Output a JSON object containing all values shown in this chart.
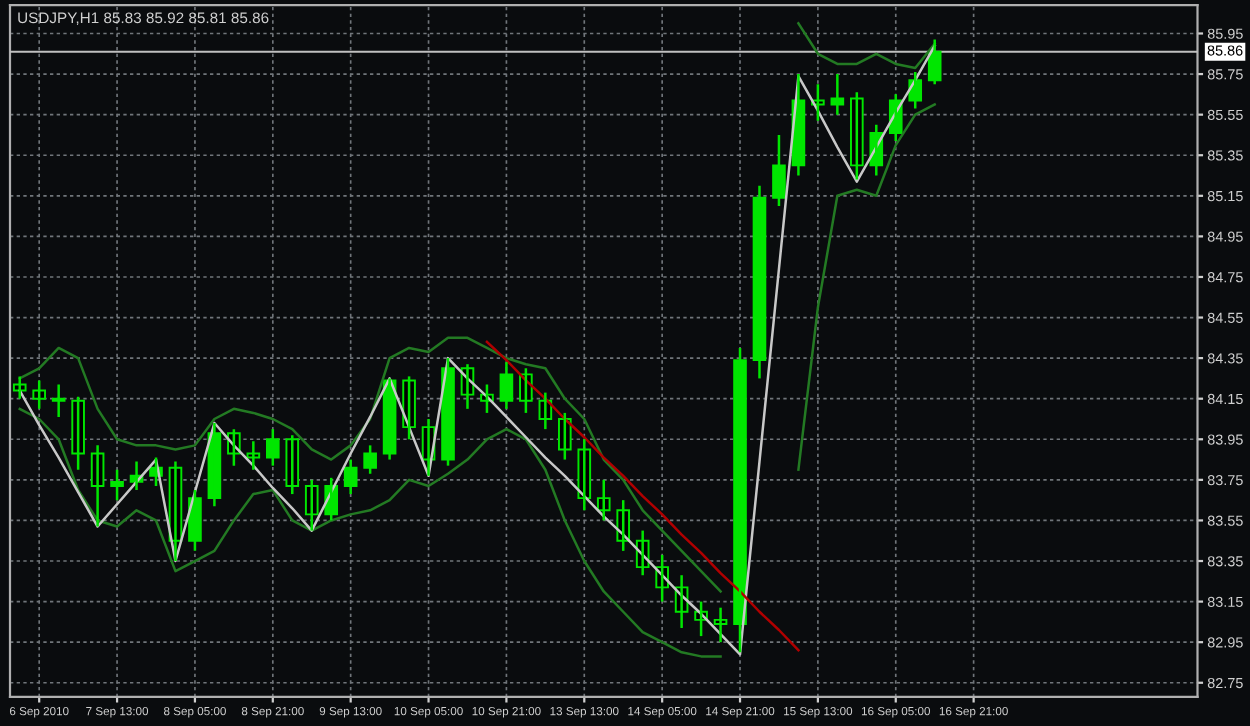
{
  "chart_data": {
    "type": "candlestick",
    "title": "USDJPY,H1 85.83 85.92 85.81 85.86",
    "categories": [
      null,
      "6 Sep 2010",
      null,
      null,
      null,
      "7 Sep 13:00",
      null,
      null,
      null,
      "8 Sep 05:00",
      null,
      null,
      null,
      "8 Sep 21:00",
      null,
      null,
      null,
      "9 Sep 13:00",
      null,
      null,
      null,
      "10 Sep 05:00",
      null,
      null,
      null,
      "10 Sep 21:00",
      null,
      null,
      null,
      "13 Sep 13:00",
      null,
      null,
      null,
      "14 Sep 05:00",
      null,
      null,
      null,
      "14 Sep 21:00",
      null,
      null,
      null,
      "15 Sep 13:00",
      null,
      null,
      null,
      "16 Sep 05:00",
      null,
      null,
      null,
      "16 Sep 21:00",
      null,
      null,
      null,
      null,
      null,
      null,
      null,
      null,
      null,
      null,
      null
    ],
    "color": "#00e600",
    "ohlc": [
      [
        84.22,
        84.26,
        84.15,
        84.19
      ],
      [
        84.19,
        84.24,
        84.1,
        84.15
      ],
      [
        84.15,
        84.22,
        84.06,
        84.14
      ],
      [
        84.14,
        84.16,
        83.8,
        83.88
      ],
      [
        83.88,
        83.92,
        83.52,
        83.72
      ],
      [
        83.72,
        83.8,
        83.65,
        83.74
      ],
      [
        83.74,
        83.84,
        83.7,
        83.77
      ],
      [
        83.77,
        83.86,
        83.72,
        83.81
      ],
      [
        83.81,
        83.84,
        83.35,
        83.45
      ],
      [
        83.45,
        83.7,
        83.4,
        83.66
      ],
      [
        83.66,
        84.03,
        83.62,
        83.98
      ],
      [
        83.98,
        84.0,
        83.82,
        83.88
      ],
      [
        83.88,
        83.94,
        83.8,
        83.86
      ],
      [
        83.86,
        84.0,
        83.82,
        83.95
      ],
      [
        83.95,
        83.97,
        83.68,
        83.72
      ],
      [
        83.72,
        83.75,
        83.5,
        83.58
      ],
      [
        83.58,
        83.76,
        83.55,
        83.72
      ],
      [
        83.72,
        83.85,
        83.68,
        83.81
      ],
      [
        83.81,
        83.92,
        83.78,
        83.88
      ],
      [
        83.88,
        84.25,
        83.85,
        84.24
      ],
      [
        84.24,
        84.26,
        83.95,
        84.01
      ],
      [
        84.01,
        84.05,
        83.77,
        83.85
      ],
      [
        83.85,
        84.35,
        83.82,
        84.3
      ],
      [
        84.3,
        84.32,
        84.1,
        84.17
      ],
      [
        84.17,
        84.22,
        84.08,
        84.14
      ],
      [
        84.14,
        84.33,
        84.1,
        84.27
      ],
      [
        84.27,
        84.3,
        84.08,
        84.14
      ],
      [
        84.14,
        84.18,
        84.0,
        84.05
      ],
      [
        84.05,
        84.08,
        83.85,
        83.9
      ],
      [
        83.9,
        83.95,
        83.6,
        83.66
      ],
      [
        83.66,
        83.75,
        83.55,
        83.6
      ],
      [
        83.6,
        83.65,
        83.4,
        83.45
      ],
      [
        83.45,
        83.5,
        83.28,
        83.32
      ],
      [
        83.32,
        83.38,
        83.15,
        83.22
      ],
      [
        83.22,
        83.28,
        83.02,
        83.1
      ],
      [
        83.1,
        83.15,
        82.98,
        83.06
      ],
      [
        83.06,
        83.12,
        82.95,
        83.04
      ],
      [
        83.04,
        84.4,
        82.9,
        84.34
      ],
      [
        84.34,
        85.2,
        84.25,
        85.14
      ],
      [
        85.14,
        85.45,
        85.1,
        85.3
      ],
      [
        85.3,
        85.75,
        85.25,
        85.62
      ],
      [
        85.62,
        85.7,
        85.52,
        85.6
      ],
      [
        85.6,
        85.75,
        85.55,
        85.63
      ],
      [
        85.63,
        85.66,
        85.23,
        85.3
      ],
      [
        85.3,
        85.5,
        85.25,
        85.46
      ],
      [
        85.46,
        85.65,
        85.42,
        85.62
      ],
      [
        85.62,
        85.76,
        85.58,
        85.72
      ],
      [
        85.72,
        85.92,
        85.7,
        85.86
      ],
      null,
      null,
      null,
      null,
      null,
      null,
      null,
      null,
      null,
      null,
      null,
      null,
      null
    ],
    "series": [
      {
        "type": "line",
        "color": "#237a23",
        "values": [
          84.25,
          84.3,
          84.4,
          84.35,
          84.1,
          83.95,
          83.92,
          83.92,
          83.9,
          83.92,
          84.05,
          84.1,
          84.08,
          84.05,
          84.0,
          83.9,
          83.85,
          83.92,
          84.05,
          84.35,
          84.4,
          84.38,
          84.45,
          84.45,
          84.4,
          84.35,
          84.32,
          84.3,
          84.15,
          84.05,
          83.85,
          83.75,
          83.6,
          83.5,
          83.4,
          83.3,
          83.2,
          null,
          null,
          null,
          86.0,
          85.85,
          85.8,
          85.8,
          85.85,
          85.8,
          85.78,
          85.9,
          null,
          null,
          null,
          null,
          null,
          null,
          null,
          null,
          null,
          null,
          null,
          null,
          null
        ]
      },
      {
        "type": "line",
        "color": "#237a23",
        "values": [
          84.1,
          84.05,
          83.95,
          83.7,
          83.55,
          83.52,
          83.6,
          83.55,
          83.3,
          83.35,
          83.4,
          83.55,
          83.68,
          83.7,
          83.55,
          83.5,
          83.55,
          83.58,
          83.6,
          83.65,
          83.75,
          83.72,
          83.78,
          83.85,
          83.95,
          84.0,
          83.95,
          83.8,
          83.55,
          83.35,
          83.2,
          83.1,
          83.0,
          82.95,
          82.9,
          82.88,
          82.88,
          null,
          null,
          null,
          83.8,
          84.6,
          85.15,
          85.18,
          85.15,
          85.4,
          85.55,
          85.6,
          null,
          null,
          null,
          null,
          null,
          null,
          null,
          null,
          null,
          null,
          null,
          null,
          null
        ]
      },
      {
        "type": "line",
        "color": "#c8c8c8",
        "values": [
          84.19,
          84.02,
          83.86,
          83.69,
          83.52,
          83.63,
          83.74,
          83.85,
          83.35,
          83.69,
          84.03,
          83.92,
          83.82,
          83.71,
          83.61,
          83.5,
          83.69,
          83.88,
          84.06,
          84.25,
          84.01,
          83.77,
          84.35,
          84.25,
          84.16,
          84.06,
          83.96,
          83.86,
          83.77,
          83.67,
          83.57,
          83.48,
          83.38,
          83.28,
          83.18,
          83.09,
          82.99,
          82.89,
          83.84,
          84.79,
          85.74,
          85.57,
          85.39,
          85.22,
          85.39,
          85.56,
          85.72,
          85.89,
          null,
          null,
          null,
          null,
          null,
          null,
          null,
          null,
          null,
          null,
          null,
          null,
          null
        ]
      },
      {
        "type": "line",
        "color": "#b00000",
        "values": [
          null,
          null,
          null,
          null,
          null,
          null,
          null,
          null,
          null,
          null,
          null,
          null,
          null,
          null,
          null,
          null,
          null,
          null,
          null,
          null,
          null,
          null,
          null,
          null,
          84.43,
          84.34,
          84.24,
          84.15,
          84.05,
          83.96,
          83.86,
          83.77,
          83.67,
          83.58,
          83.48,
          83.39,
          83.29,
          83.2,
          83.1,
          83.01,
          82.91,
          null,
          null,
          null,
          null,
          null,
          null,
          null,
          null,
          null,
          null,
          null,
          null,
          null,
          null,
          null,
          null,
          null,
          null,
          null,
          null
        ]
      }
    ],
    "ref_lines": [
      {
        "axis": "y",
        "value": 85.86,
        "label": "85.86",
        "color": "#c0c0c0"
      }
    ],
    "ylim": [
      82.68,
      86.09
    ],
    "yticks": [
      82.75,
      82.95,
      83.15,
      83.35,
      83.55,
      83.75,
      83.95,
      84.15,
      84.35,
      84.55,
      84.75,
      84.95,
      85.15,
      85.35,
      85.55,
      85.75,
      85.95
    ],
    "grid": true,
    "line_style": "solid",
    "marker": "none"
  }
}
